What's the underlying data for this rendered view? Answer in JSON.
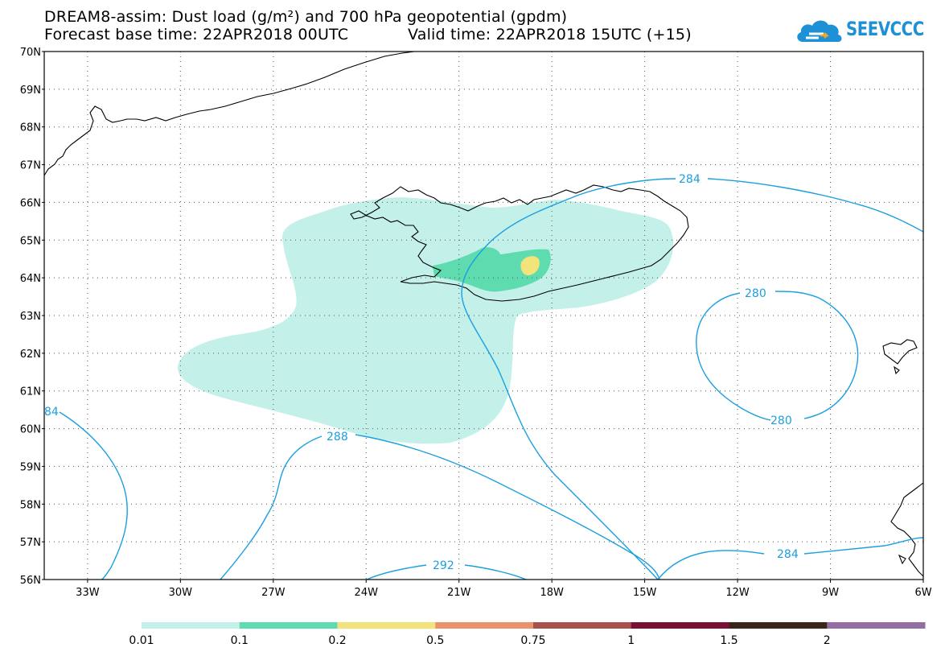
{
  "title": {
    "line1": "DREAM8-assim: Dust load (g/m²) and 700 hPa geopotential (gpdm)",
    "line2_base": "Forecast base time: 22APR2018 00UTC",
    "line2_valid": "Valid time: 22APR2018 15UTC (+15)"
  },
  "logo": {
    "text": "SEEVCCC"
  },
  "axes": {
    "lat_labels": [
      "70N",
      "69N",
      "68N",
      "67N",
      "66N",
      "65N",
      "64N",
      "63N",
      "62N",
      "61N",
      "60N",
      "59N",
      "58N",
      "57N",
      "56N"
    ],
    "lon_labels": [
      "33W",
      "30W",
      "27W",
      "24W",
      "21W",
      "18W",
      "15W",
      "12W",
      "9W",
      "6W"
    ]
  },
  "contour_labels": [
    "284",
    "280",
    "280",
    "288",
    "284",
    "292",
    "84"
  ],
  "colorbar": {
    "colors": [
      "#c4f0ea",
      "#5edcb0",
      "#f2e47a",
      "#e9926c",
      "#a7504c",
      "#7a0f36",
      "#3a2618",
      "#946ea0"
    ],
    "labels": [
      "0.01",
      "0.1",
      "0.2",
      "0.5",
      "0.75",
      "1",
      "1.5",
      "2"
    ]
  },
  "colors": {
    "contour": "#1a9fe0",
    "coast": "#000000",
    "grid": "#555555"
  }
}
